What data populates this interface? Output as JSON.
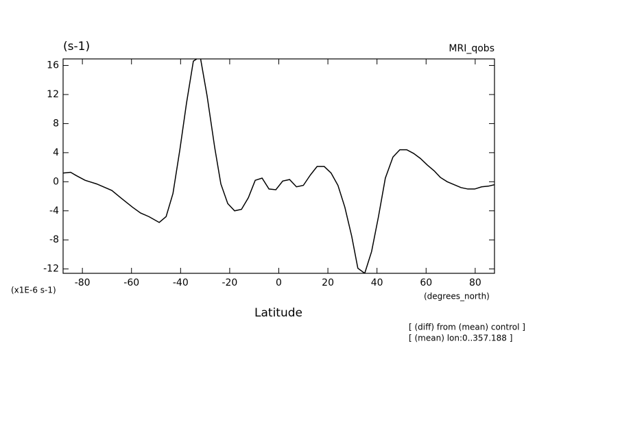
{
  "chart_data": {
    "type": "line",
    "units_label": "(s-1)",
    "title": "MRI_qobs",
    "scale_label": "(x1E-6 s-1)",
    "x_units": "(degrees_north)",
    "xlabel": "Latitude",
    "annotations": [
      "[ (diff) from (mean) control ]",
      "[ (mean) lon:0..357.188 ]"
    ],
    "x": [
      -87.86,
      -84.8,
      -82.5,
      -78.9,
      -74.2,
      -68,
      -64.4,
      -59.6,
      -56.3,
      -52.9,
      -48.7,
      -45.9,
      -43.1,
      -40.3,
      -37.6,
      -34.8,
      -32,
      -29.2,
      -26.1,
      -23.6,
      -20.8,
      -18,
      -15.2,
      -12.4,
      -9.6,
      -6.8,
      -4,
      -1.2,
      1.6,
      4.4,
      7.2,
      10,
      12.8,
      15.6,
      18.5,
      21.3,
      24.1,
      26.9,
      29.7,
      32.2,
      35,
      37.8,
      40.6,
      43.4,
      46.5,
      49.3,
      52.1,
      54.9,
      57.7,
      60.5,
      63.3,
      65.8,
      68.6,
      71.4,
      74.2,
      77,
      79.8,
      82.6,
      85.5,
      87.86
    ],
    "series": [
      {
        "color": "#000000",
        "values": [
          1.2,
          1.3,
          0.85,
          0.2,
          -0.3,
          -1.2,
          -2.2,
          -3.5,
          -4.3,
          -4.8,
          -5.6,
          -4.8,
          -1.6,
          4.4,
          10.8,
          16.6,
          17.2,
          11.8,
          4.7,
          -0.3,
          -3.0,
          -4.0,
          -3.8,
          -2.2,
          0.2,
          0.5,
          -1.0,
          -1.1,
          0.1,
          0.3,
          -0.7,
          -0.5,
          0.9,
          2.1,
          2.1,
          1.2,
          -0.5,
          -3.5,
          -7.5,
          -11.9,
          -12.6,
          -9.6,
          -4.8,
          0.5,
          3.4,
          4.4,
          4.4,
          3.9,
          3.2,
          2.3,
          1.5,
          0.6,
          0,
          -0.4,
          -0.8,
          -1.0,
          -1.0,
          -0.7,
          -0.6,
          -0.4
        ]
      }
    ],
    "xlim": [
      -87.86,
      87.86
    ],
    "ylim": [
      -12.6,
      16.9
    ],
    "xticks": [
      -80,
      -60,
      -40,
      -20,
      0,
      20,
      40,
      60,
      80
    ],
    "yticks": [
      -12,
      -8,
      -4,
      0,
      4,
      8,
      12,
      16
    ]
  }
}
